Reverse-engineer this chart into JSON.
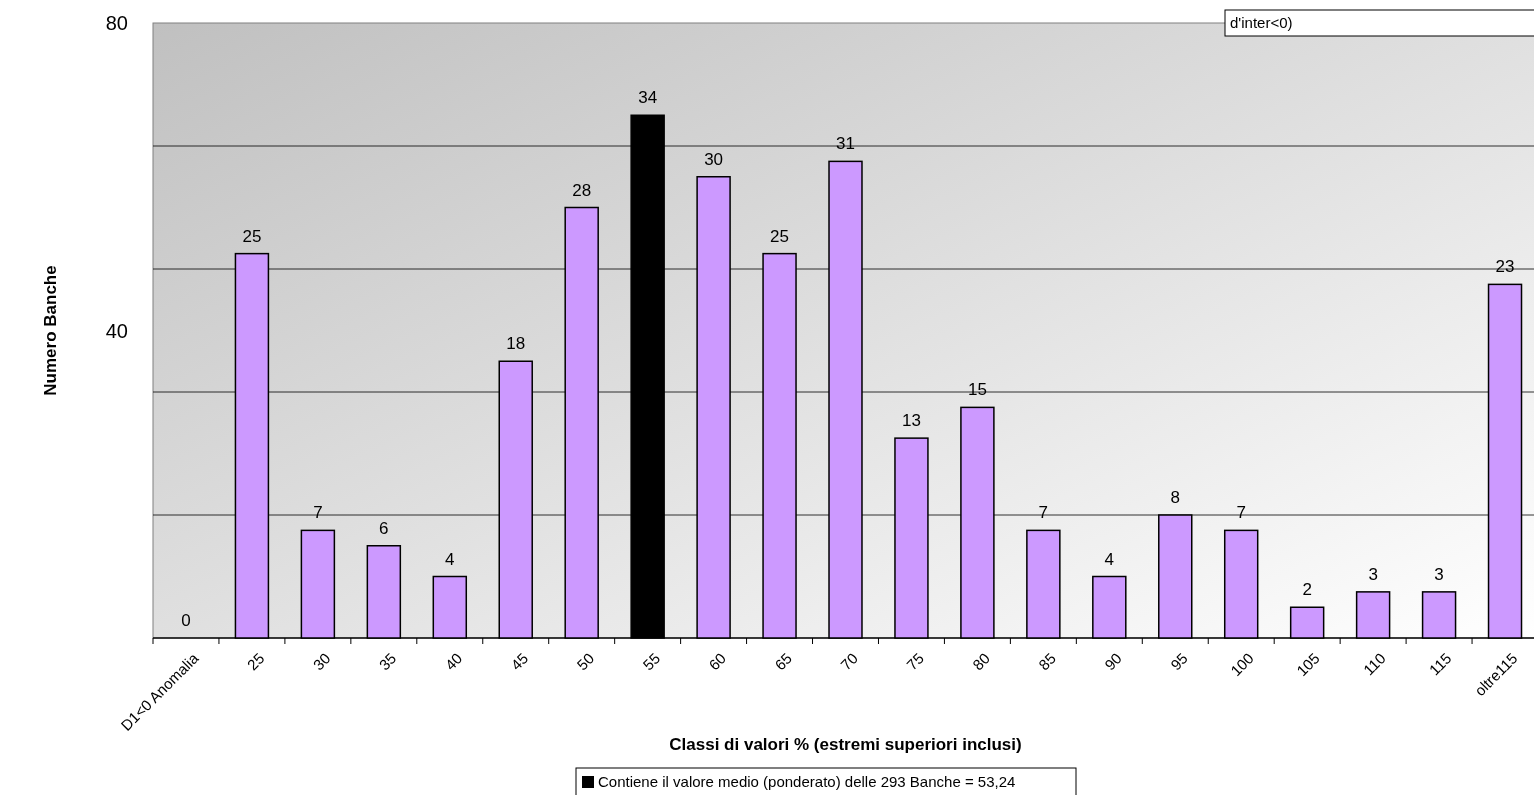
{
  "chart_data": {
    "type": "bar",
    "xlabel": "Classi di valori % (estremi superiori inclusi)",
    "ylabel": "Numero Banche",
    "categories": [
      "D1<0 Anomalia",
      "25",
      "30",
      "35",
      "40",
      "45",
      "50",
      "55",
      "60",
      "65",
      "70",
      "75",
      "80",
      "85",
      "90",
      "95",
      "100",
      "105",
      "110",
      "115",
      "oltre115"
    ],
    "series": [
      {
        "color": "#cc99ff",
        "values": [
          0,
          25,
          7,
          6,
          4,
          18,
          28,
          null,
          30,
          25,
          31,
          13,
          15,
          7,
          4,
          8,
          7,
          2,
          3,
          3,
          23
        ],
        "value_labels": [
          "0",
          "25",
          "7",
          "6",
          "4",
          "18",
          "28",
          null,
          "30",
          "25",
          "31",
          "13",
          "15",
          "7",
          "4",
          "8",
          "7",
          "2",
          "3",
          "3",
          "23"
        ]
      },
      {
        "name": "Contiene il valore medio (ponderato) delle 293 Banche = 53,24",
        "color": "#000000",
        "values": [
          null,
          null,
          null,
          null,
          null,
          null,
          null,
          34,
          null,
          null,
          null,
          null,
          null,
          null,
          null,
          null,
          null,
          null,
          null,
          null,
          null
        ],
        "value_labels": [
          null,
          null,
          null,
          null,
          null,
          null,
          null,
          "34",
          null,
          null,
          null,
          null,
          null,
          null,
          null,
          null,
          null,
          null,
          null,
          null,
          null
        ]
      }
    ],
    "ylim": [
      0,
      40
    ],
    "y2lim": [
      0,
      80
    ],
    "y2ticks": [
      {
        "value": 0,
        "label": null
      },
      {
        "value": 16,
        "label": null
      },
      {
        "value": 32,
        "label": null
      },
      40,
      {
        "value": 48,
        "label": null
      },
      {
        "value": 64,
        "label": null
      },
      80
    ],
    "grid": "y",
    "legend": "bottom",
    "annotations": [
      "d'inter<0)"
    ]
  }
}
